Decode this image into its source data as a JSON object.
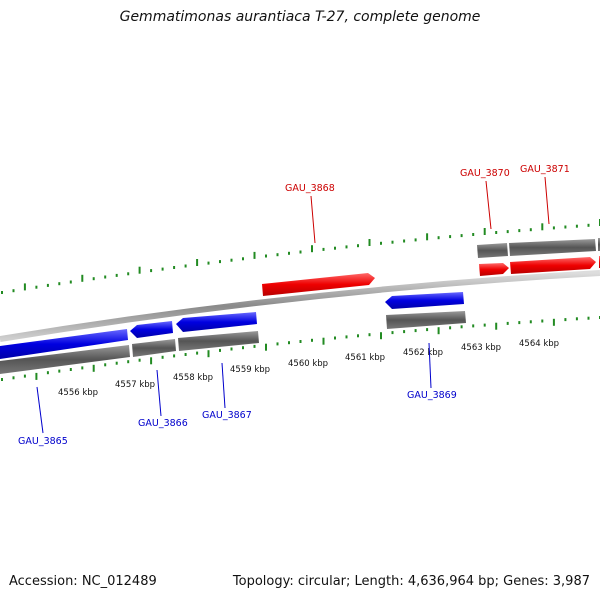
{
  "title": "Gemmatimonas aurantiaca T-27, complete genome",
  "footer": {
    "accession": "Accession: NC_012489",
    "summary": "Topology: circular; Length: 4,636,964 bp; Genes: 3,987"
  },
  "colors": {
    "forward_gene": "#ff0000",
    "reverse_gene": "#0000ee",
    "cds_box": "#666666",
    "tick": "#228b22",
    "backbone": "#888888"
  },
  "scale_labels": [
    "4556 kbp",
    "4557 kbp",
    "4558 kbp",
    "4559 kbp",
    "4560 kbp",
    "4561 kbp",
    "4562 kbp",
    "4563 kbp",
    "4564 kbp"
  ],
  "genes": [
    {
      "name": "GAU_3865",
      "strand": "reverse"
    },
    {
      "name": "GAU_3866",
      "strand": "reverse"
    },
    {
      "name": "GAU_3867",
      "strand": "reverse"
    },
    {
      "name": "GAU_3868",
      "strand": "forward"
    },
    {
      "name": "GAU_3869",
      "strand": "reverse"
    },
    {
      "name": "GAU_3870",
      "strand": "forward"
    },
    {
      "name": "GAU_3871",
      "strand": "forward"
    }
  ]
}
